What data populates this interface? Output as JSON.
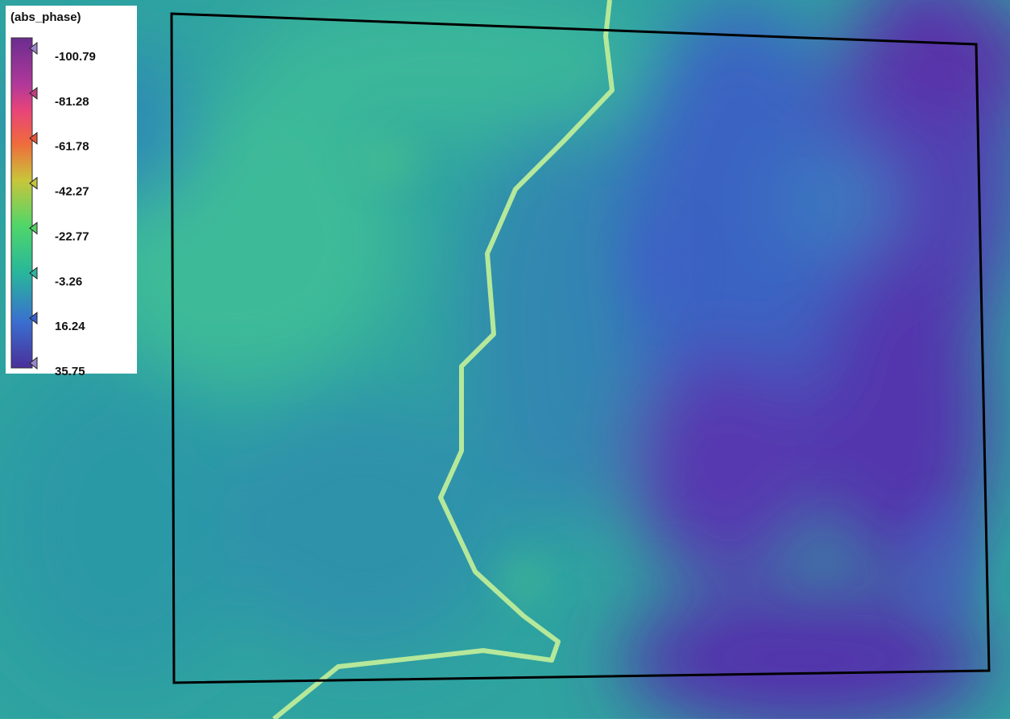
{
  "legend": {
    "title": "(abs_phase)",
    "ticks": [
      -100.79,
      -81.28,
      -61.78,
      -42.27,
      -22.77,
      -3.26,
      16.24,
      35.75
    ]
  }
}
